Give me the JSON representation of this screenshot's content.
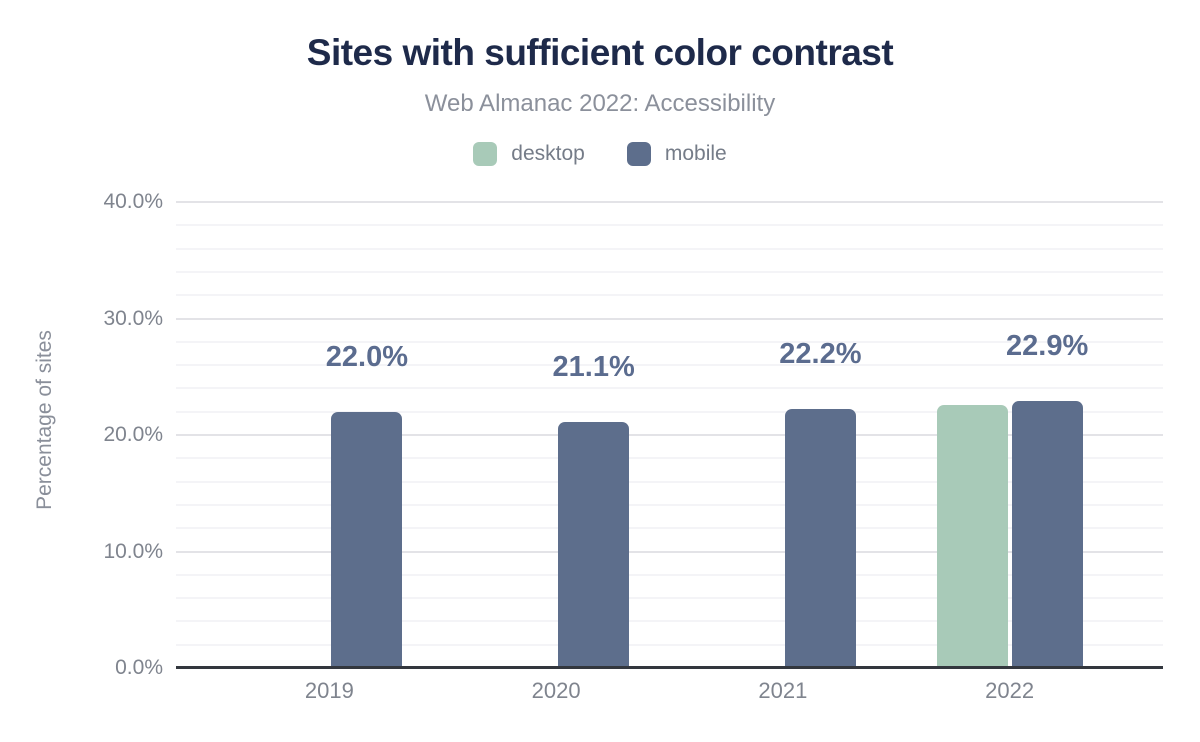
{
  "header": {
    "title": "Sites with sufficient color contrast",
    "subtitle": "Web Almanac 2022: Accessibility"
  },
  "chart_data": {
    "type": "bar",
    "title": "Sites with sufficient color contrast",
    "subtitle": "Web Almanac 2022: Accessibility",
    "categories": [
      "2019",
      "2020",
      "2021",
      "2022"
    ],
    "series": [
      {
        "name": "desktop",
        "color": "#a8cab8",
        "values": [
          null,
          null,
          null,
          22.6
        ]
      },
      {
        "name": "mobile",
        "color": "#5d6e8c",
        "values": [
          22.0,
          21.1,
          22.2,
          22.9
        ]
      }
    ],
    "data_labels": {
      "on_series": "mobile",
      "texts": [
        "22.0%",
        "21.1%",
        "22.2%",
        "22.9%"
      ],
      "color": "#5b6c8f"
    },
    "xlabel": "",
    "ylabel": "Percentage of sites",
    "ylim": [
      0,
      40
    ],
    "yticks": [
      {
        "value": 0,
        "label": "0.0%"
      },
      {
        "value": 10,
        "label": "10.0%"
      },
      {
        "value": 20,
        "label": "20.0%"
      },
      {
        "value": 30,
        "label": "30.0%"
      },
      {
        "value": 40,
        "label": "40.0%"
      }
    ],
    "minor_grid_step": 2,
    "grid": true,
    "legend_position": "top",
    "palette": {
      "title": "#1e2a4a",
      "subtitle": "#8b909b",
      "tick_labels": "#7f848e",
      "axis_line": "#33373e",
      "grid_major": "#e3e3e7",
      "grid_minor": "#f4f4f7"
    }
  }
}
